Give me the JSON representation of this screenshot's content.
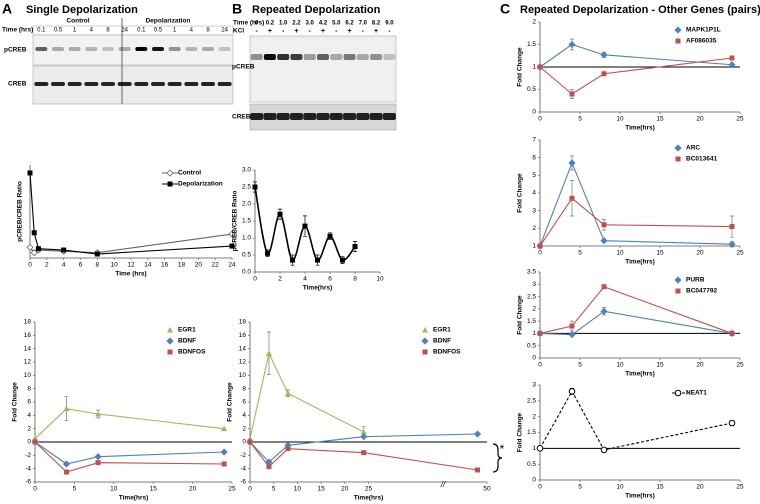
{
  "panels": [
    {
      "letter": "A",
      "title": "Single Depolarization"
    },
    {
      "letter": "B",
      "title": "Repeated Depolarization"
    },
    {
      "letter": "C",
      "title": "Repeated Depolarization - Other Genes (pairs)"
    }
  ],
  "blot_a": {
    "groups": [
      "Control",
      "Depolarization"
    ],
    "time_label": "Time (hrs)",
    "times": [
      "0.1",
      "0.5",
      "1",
      "4",
      "8",
      "24",
      "0.1",
      "0.5",
      "1",
      "4",
      "8",
      "24"
    ],
    "rows": [
      "pCREB",
      "CREB"
    ]
  },
  "blot_b": {
    "time_label": "Time (hrs)",
    "times": [
      "0",
      "0.2",
      "1.0",
      "2.2",
      "3.0",
      "4.2",
      "5.0",
      "6.2",
      "7.0",
      "8.2",
      "9.0"
    ],
    "kcl_label": "KCl",
    "kcl": [
      "-",
      "+",
      "-",
      "+",
      "-",
      "+",
      "-",
      "+",
      "-",
      "+",
      "-"
    ],
    "rows": [
      "pCREB",
      "CREB"
    ]
  },
  "chart_data": [
    {
      "type": "line",
      "xlabel": "Time (hrs)",
      "ylabel": "pCREB/CREB Ratio",
      "xlim": [
        0,
        24
      ],
      "xticks": [
        0,
        2,
        4,
        6,
        8,
        10,
        12,
        14,
        16,
        18,
        20,
        22,
        24
      ],
      "ylim": [
        0,
        3.5
      ],
      "x": [
        0,
        0.5,
        1,
        4,
        8,
        24
      ],
      "legend": "top-right",
      "series": [
        {
          "name": "Control",
          "color": "#666666",
          "marker": "diamond-open",
          "values": [
            0.4,
            0.2,
            0.3,
            0.25,
            0.2,
            0.9
          ]
        },
        {
          "name": "Depolarization",
          "color": "#000000",
          "marker": "square",
          "values": [
            3.2,
            0.95,
            0.35,
            0.3,
            0.15,
            0.45
          ]
        }
      ]
    },
    {
      "type": "line",
      "xlabel": "Time(hrs)",
      "ylabel": "Fold Change",
      "xlim": [
        0,
        25
      ],
      "xticks": [
        0,
        5,
        10,
        15,
        20,
        25
      ],
      "ylim": [
        -6,
        18
      ],
      "yticks": [
        -6,
        -4,
        -2,
        0,
        2,
        4,
        6,
        8,
        10,
        12,
        14,
        16,
        18
      ],
      "reference_line": 0,
      "x": [
        0,
        4,
        8,
        24
      ],
      "legend": "top-right",
      "series": [
        {
          "name": "EGR1",
          "color": "#9bbb59",
          "marker": "triangle",
          "values": [
            0.5,
            5,
            4.2,
            2
          ],
          "errors": [
            null,
            1.8,
            0.6,
            null
          ]
        },
        {
          "name": "BDNF",
          "color": "#4f81bd",
          "marker": "diamond",
          "values": [
            0,
            -3.3,
            -2.2,
            -1.5
          ]
        },
        {
          "name": "BDNFOS",
          "color": "#c0504d",
          "marker": "square",
          "values": [
            0,
            -4.5,
            -3.1,
            -3.3
          ]
        }
      ]
    },
    {
      "type": "line",
      "xlabel": "Time(hrs)",
      "ylabel": "pCREB/CREB Ratio",
      "smooth": true,
      "xlim": [
        0,
        10
      ],
      "xticks": [
        0,
        2,
        4,
        6,
        8,
        10
      ],
      "ylim": [
        0,
        3
      ],
      "yticks": [
        {
          "value": 0,
          "label": "0.0"
        },
        0.5,
        {
          "value": 1,
          "label": "1.0"
        },
        1.5,
        {
          "value": 2,
          "label": "2.0"
        },
        2.5,
        {
          "value": 3,
          "label": "3.0"
        }
      ],
      "x": [
        0,
        1,
        2,
        3,
        4,
        5,
        6,
        7,
        8
      ],
      "series": [
        {
          "color": "#000000",
          "marker": "square",
          "values": [
            2.5,
            0.55,
            1.7,
            0.35,
            1.35,
            0.35,
            1.05,
            0.35,
            0.75
          ],
          "errors": [
            0.15,
            0.1,
            0.15,
            0.15,
            0.3,
            0.15,
            0.1,
            0.1,
            0.15
          ]
        }
      ]
    },
    {
      "type": "line",
      "xlabel": "Time(hrs)",
      "ylabel": "Fold Change",
      "xlim": [
        0,
        50
      ],
      "xticks": [
        0,
        5,
        10,
        15,
        20,
        25,
        50
      ],
      "ylim": [
        -6,
        18
      ],
      "yticks": [
        -6,
        -4,
        -2,
        0,
        2,
        4,
        6,
        8,
        10,
        12,
        14,
        16,
        18
      ],
      "reference_line": 0,
      "x": [
        0,
        4,
        8,
        24,
        48
      ],
      "legend": "top-right",
      "annotations": [
        "*",
        "//"
      ],
      "series": [
        {
          "name": "EGR1",
          "color": "#9bbb59",
          "marker": "triangle",
          "values": [
            0.5,
            13.3,
            7.3,
            1.5,
            null
          ],
          "errors": [
            null,
            3.2,
            0.5,
            0.8,
            null
          ]
        },
        {
          "name": "BDNF",
          "color": "#4f81bd",
          "marker": "diamond",
          "values": [
            0,
            -3,
            -0.5,
            0.8,
            1.2
          ]
        },
        {
          "name": "BDNFOS",
          "color": "#c0504d",
          "marker": "square",
          "values": [
            0,
            -3.7,
            -1,
            -1.6,
            -4.2
          ]
        }
      ]
    },
    {
      "type": "line",
      "xlabel": "Time(hrs)",
      "ylabel": "Fold Change",
      "xlim": [
        0,
        25
      ],
      "xticks": [
        0,
        5,
        10,
        15,
        20,
        25
      ],
      "ylim": [
        0,
        2
      ],
      "yticks": [
        0,
        0.5,
        1,
        1.5,
        2
      ],
      "reference_line": 1,
      "x": [
        0,
        4,
        8,
        24
      ],
      "legend": "top-right",
      "series": [
        {
          "name": "MAPK1P1L",
          "color": "#4f81bd",
          "marker": "diamond",
          "values": [
            1,
            1.5,
            1.27,
            1.05
          ],
          "errors": [
            null,
            0.12,
            0.06,
            null
          ]
        },
        {
          "name": "AF086035",
          "color": "#c0504d",
          "marker": "square",
          "values": [
            1,
            0.4,
            0.85,
            1.2
          ],
          "errors": [
            null,
            0.1,
            0.04,
            null
          ]
        }
      ]
    },
    {
      "type": "line",
      "xlabel": "Time(hrs)",
      "ylabel": "Fold Change",
      "xlim": [
        0,
        25
      ],
      "xticks": [
        0,
        5,
        10,
        15,
        20,
        25
      ],
      "ylim": [
        1,
        7
      ],
      "yticks": [
        1,
        2,
        3,
        4,
        5,
        6,
        7
      ],
      "x": [
        0,
        4,
        8,
        24
      ],
      "legend": "top-right",
      "series": [
        {
          "name": "ARC",
          "color": "#4f81bd",
          "marker": "diamond",
          "values": [
            1,
            5.7,
            1.3,
            1.1
          ],
          "errors": [
            null,
            0.4,
            null,
            0.15
          ]
        },
        {
          "name": "BC013641",
          "color": "#c0504d",
          "marker": "square",
          "values": [
            1,
            3.7,
            2.2,
            2.1
          ],
          "errors": [
            null,
            1,
            0.3,
            0.6
          ]
        }
      ]
    },
    {
      "type": "line",
      "xlabel": "Time(hrs)",
      "ylabel": "Fold Change",
      "xlim": [
        0,
        25
      ],
      "xticks": [
        0,
        5,
        10,
        15,
        20,
        25
      ],
      "ylim": [
        0,
        3.5
      ],
      "yticks": [
        0,
        0.5,
        1,
        1.5,
        2,
        2.5,
        3,
        3.5
      ],
      "reference_line": 1,
      "x": [
        0,
        4,
        8,
        24
      ],
      "legend": "top-right",
      "series": [
        {
          "name": "PURB",
          "color": "#4f81bd",
          "marker": "diamond",
          "values": [
            1,
            0.95,
            1.9,
            1
          ],
          "errors": [
            null,
            null,
            0.15,
            null
          ]
        },
        {
          "name": "BC047792",
          "color": "#c0504d",
          "marker": "square",
          "values": [
            1,
            1.3,
            2.9,
            1
          ],
          "errors": [
            null,
            0.2,
            null,
            null
          ]
        }
      ]
    },
    {
      "type": "line",
      "xlabel": "Time(hrs)",
      "ylabel": "Fold Change",
      "xlim": [
        0,
        25
      ],
      "xticks": [
        0,
        5,
        10,
        15,
        20,
        25
      ],
      "ylim": [
        0,
        3
      ],
      "yticks": [
        0,
        0.5,
        1,
        1.5,
        2,
        2.5,
        3
      ],
      "reference_line": 1,
      "x": [
        0,
        4,
        8,
        24
      ],
      "legend": "top-right",
      "series": [
        {
          "name": "NEAT1",
          "color": "#000000",
          "marker": "circle-open",
          "dash": true,
          "values": [
            1,
            2.8,
            0.95,
            1.8
          ],
          "errors": [
            null,
            0.1,
            null,
            0.07
          ]
        }
      ]
    }
  ]
}
